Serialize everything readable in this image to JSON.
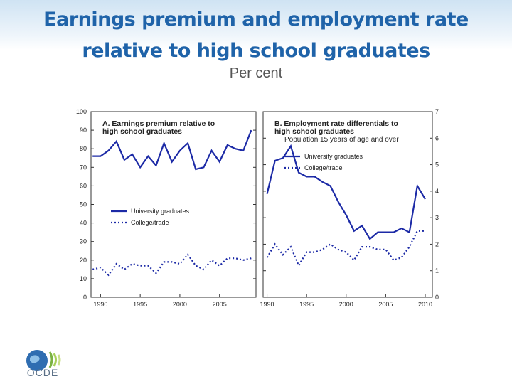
{
  "header": {
    "title": [
      "Earnings premium and employment rate",
      "relative to high school graduates"
    ],
    "subtitle": "Per cent"
  },
  "logo": {
    "text": "OCDE"
  },
  "chart_data": [
    {
      "type": "line",
      "title": [
        "A. Earnings premium relative to",
        "high school graduates"
      ],
      "x": [
        1989,
        1990,
        1991,
        1992,
        1993,
        1994,
        1995,
        1996,
        1997,
        1998,
        1999,
        2000,
        2001,
        2002,
        2003,
        2004,
        2005,
        2006,
        2007,
        2008,
        2009
      ],
      "series": [
        {
          "name": "University graduates",
          "color": "#1c2aa6",
          "dash": "solid",
          "values": [
            76,
            76,
            79,
            84,
            74,
            77,
            70,
            76,
            71,
            83,
            73,
            79,
            83,
            69,
            70,
            79,
            73,
            82,
            80,
            79,
            90
          ]
        },
        {
          "name": "College/trade",
          "color": "#1c2aa6",
          "dash": "dotted",
          "values": [
            15,
            16,
            12,
            18,
            15,
            18,
            17,
            17,
            13,
            19,
            19,
            18,
            23,
            17,
            15,
            20,
            17,
            21,
            21,
            20,
            21
          ]
        }
      ],
      "xlim": [
        1988.8,
        2009.6
      ],
      "xticks": [
        1990,
        1995,
        2000,
        2005
      ],
      "ylim": [
        0,
        100
      ],
      "yticks": [
        0,
        10,
        20,
        30,
        40,
        50,
        60,
        70,
        80,
        90,
        100
      ],
      "yaxis_side": "left",
      "legend": "center left"
    },
    {
      "type": "line",
      "title": [
        "B. Employment rate differentials to",
        "high school graduates"
      ],
      "subtitle": "Population 15 years of age and over",
      "x": [
        1990,
        1991,
        1992,
        1993,
        1994,
        1995,
        1996,
        1997,
        1998,
        1999,
        2000,
        2001,
        2002,
        2003,
        2004,
        2005,
        2006,
        2007,
        2008,
        2009,
        2010
      ],
      "series": [
        {
          "name": "University graduates",
          "color": "#1c2aa6",
          "dash": "solid",
          "values": [
            3.9,
            5.15,
            5.25,
            5.7,
            4.7,
            4.55,
            4.55,
            4.35,
            4.2,
            3.6,
            3.1,
            2.5,
            2.7,
            2.2,
            2.45,
            2.45,
            2.45,
            2.6,
            2.45,
            4.2,
            3.7
          ]
        },
        {
          "name": "College/trade",
          "color": "#1c2aa6",
          "dash": "dotted",
          "values": [
            1.5,
            2.0,
            1.6,
            1.9,
            1.2,
            1.7,
            1.7,
            1.8,
            2.0,
            1.8,
            1.7,
            1.4,
            1.9,
            1.9,
            1.8,
            1.8,
            1.4,
            1.5,
            1.9,
            2.5,
            2.5
          ]
        }
      ],
      "xlim": [
        1989.5,
        2010.9
      ],
      "xticks": [
        1990,
        1995,
        2000,
        2005,
        2010
      ],
      "ylim": [
        0,
        7
      ],
      "yticks": [
        0,
        1,
        2,
        3,
        4,
        5,
        6,
        7
      ],
      "yaxis_side": "right",
      "legend": "upper left"
    }
  ]
}
